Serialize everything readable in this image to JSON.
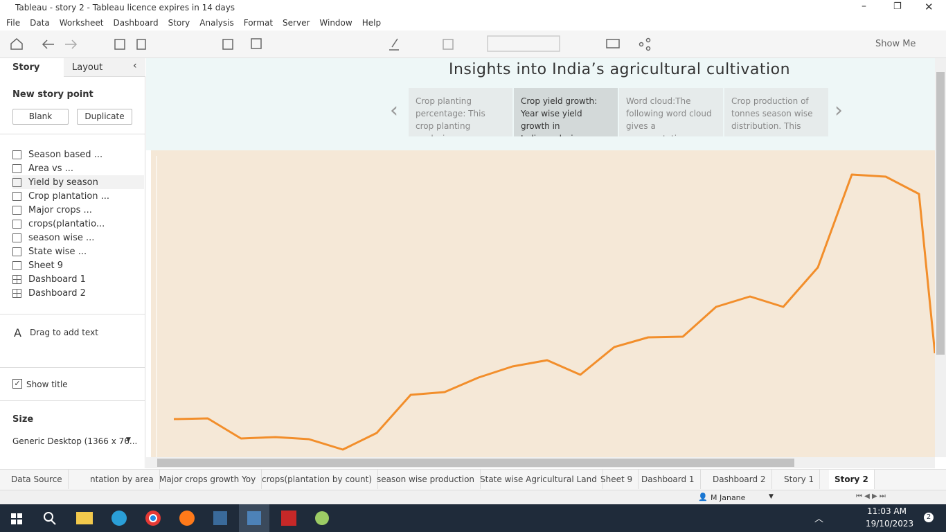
{
  "window": {
    "title": "Tableau - story 2 - Tableau licence expires in 14 days"
  },
  "menu": [
    "File",
    "Data",
    "Worksheet",
    "Dashboard",
    "Story",
    "Analysis",
    "Format",
    "Server",
    "Window",
    "Help"
  ],
  "toolbar": {
    "show_me": "Show Me"
  },
  "sidebar": {
    "tabs": [
      "Story",
      "Layout"
    ],
    "new_story_point": "New story point",
    "buttons": [
      "Blank",
      "Duplicate"
    ],
    "sheets": [
      "Season based ...",
      "Area vs ...",
      "Yield by season",
      "Crop plantation ...",
      "Major crops ...",
      "crops(plantatio...",
      "season wise ...",
      "State wise ...",
      "Sheet 9",
      "Dashboard 1",
      "Dashboard 2"
    ],
    "drag_text": "Drag to add text",
    "show_title": "Show title",
    "size_label": "Size",
    "size_value": "Generic Desktop (1366 x 76..."
  },
  "story": {
    "title": "Insights into India’s agricultural cultivation",
    "points": [
      "Crop planting percentage: This crop planting analysing",
      "Crop yield growth: Year wise yield growth in India.analysing",
      "Word cloud:The following word cloud gives a representation",
      "Crop production of tonnes season wise distribution. This"
    ]
  },
  "tabs": [
    "Data Source",
    "ntation by area",
    "Major crops growth Yoy",
    "crops(plantation by count)",
    "season wise production",
    "State wise Agricultural Land",
    "Sheet 9",
    "Dashboard 1",
    "Dashboard 2",
    "Story 1",
    "Story 2"
  ],
  "status": {
    "user": "M Janane"
  },
  "taskbar": {
    "time": "11:03 AM",
    "date": "19/10/2023",
    "notifications": "2"
  }
}
